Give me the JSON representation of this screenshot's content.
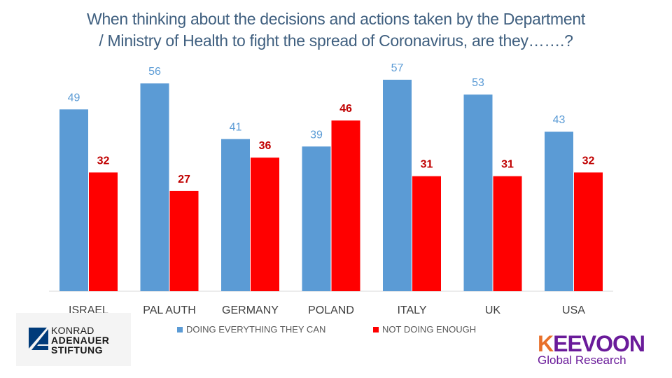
{
  "chart_data": {
    "type": "bar",
    "title": "When thinking about the decisions and actions taken by the Department / Ministry of Health to fight the spread of Coronavirus, are they…….?",
    "title_lines": [
      "When thinking about the decisions and actions taken by the Department",
      "/ Ministry of Health to fight the spread of Coronavirus, are they…….?"
    ],
    "categories": [
      "ISRAEL",
      "PAL AUTH",
      "GERMANY",
      "POLAND",
      "ITALY",
      "UK",
      "USA"
    ],
    "series": [
      {
        "name": "DOING EVERYTHING THEY CAN",
        "color": "#5b9bd5",
        "label_color": "#5b9bd5",
        "values": [
          49,
          56,
          41,
          39,
          57,
          53,
          43
        ]
      },
      {
        "name": "NOT DOING ENOUGH",
        "color": "#ff0000",
        "label_color": "#c00000",
        "values": [
          32,
          27,
          36,
          46,
          31,
          31,
          32
        ]
      }
    ],
    "xlabel": "",
    "ylabel": "",
    "ylim": [
      0,
      60
    ],
    "grid": false,
    "y_axis_visible": false,
    "data_labels": true,
    "legend_position": "bottom"
  },
  "logos": {
    "left": {
      "line1": "KONRAD",
      "line2": "ADENAUER",
      "line3": "STIFTUNG",
      "color": "#003b7a"
    },
    "right": {
      "brand_k": "K",
      "brand_rest": "EEVOON",
      "subtitle": "Global Research",
      "color": "#6a1b9a",
      "accent": "#e8702a"
    }
  }
}
